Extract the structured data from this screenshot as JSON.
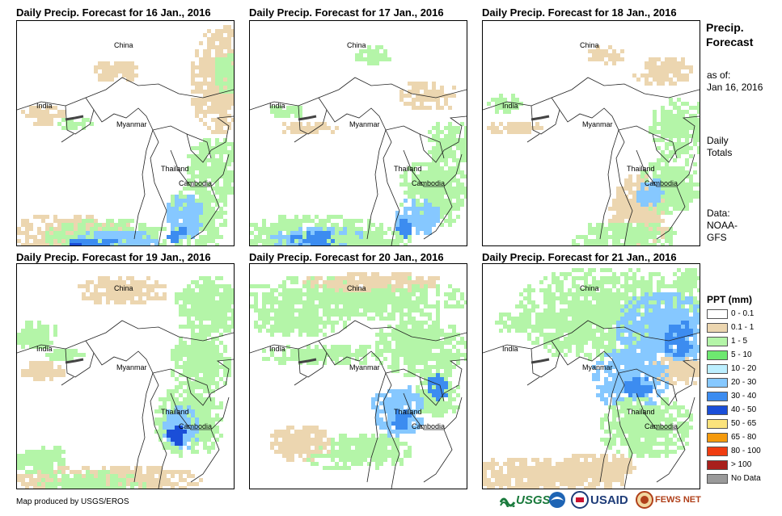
{
  "panels": [
    {
      "title": "Daily Precip. Forecast for 16 Jan., 2016"
    },
    {
      "title": "Daily Precip. Forecast for 17 Jan., 2016"
    },
    {
      "title": "Daily Precip. Forecast for 18 Jan., 2016"
    },
    {
      "title": "Daily Precip. Forecast for 19 Jan., 2016"
    },
    {
      "title": "Daily Precip. Forecast for 20 Jan., 2016"
    },
    {
      "title": "Daily Precip. Forecast for 21 Jan., 2016"
    }
  ],
  "places": {
    "china": "China",
    "india": "India",
    "myanmar": "Myanmar",
    "thailand": "Thailand",
    "cambodia": "Cambodia"
  },
  "sidebar": {
    "heading_line1": "Precip.",
    "heading_line2": "Forecast",
    "asof_line1": "as of:",
    "asof_line2": "Jan 16, 2016",
    "totals_line1": "Daily",
    "totals_line2": "Totals",
    "data_line1": "Data:",
    "data_line2": "NOAA-",
    "data_line3": "GFS"
  },
  "legend": {
    "title": "PPT (mm)",
    "items": [
      {
        "label": "0 - 0.1",
        "color": "#ffffff"
      },
      {
        "label": "0.1 - 1",
        "color": "#ecd6b0"
      },
      {
        "label": "1 - 5",
        "color": "#b4f5a8"
      },
      {
        "label": "5 - 10",
        "color": "#6ee870"
      },
      {
        "label": "10 - 20",
        "color": "#bcefff"
      },
      {
        "label": "20 - 30",
        "color": "#86c8ff"
      },
      {
        "label": "30 - 40",
        "color": "#3c8cf0"
      },
      {
        "label": "40 - 50",
        "color": "#1a4ed8"
      },
      {
        "label": "50 - 65",
        "color": "#fbe37c"
      },
      {
        "label": "65 - 80",
        "color": "#f59a0c"
      },
      {
        "label": "80 - 100",
        "color": "#f03c10"
      },
      {
        "label": "> 100",
        "color": "#a8201c"
      },
      {
        "label": "No Data",
        "color": "#9a9a9a"
      }
    ]
  },
  "footer": {
    "credit": "Map produced by USGS/EROS",
    "logo_usgs": "USGS",
    "logo_usaid": "USAID",
    "logo_fewsnet": "FEWS NET"
  }
}
